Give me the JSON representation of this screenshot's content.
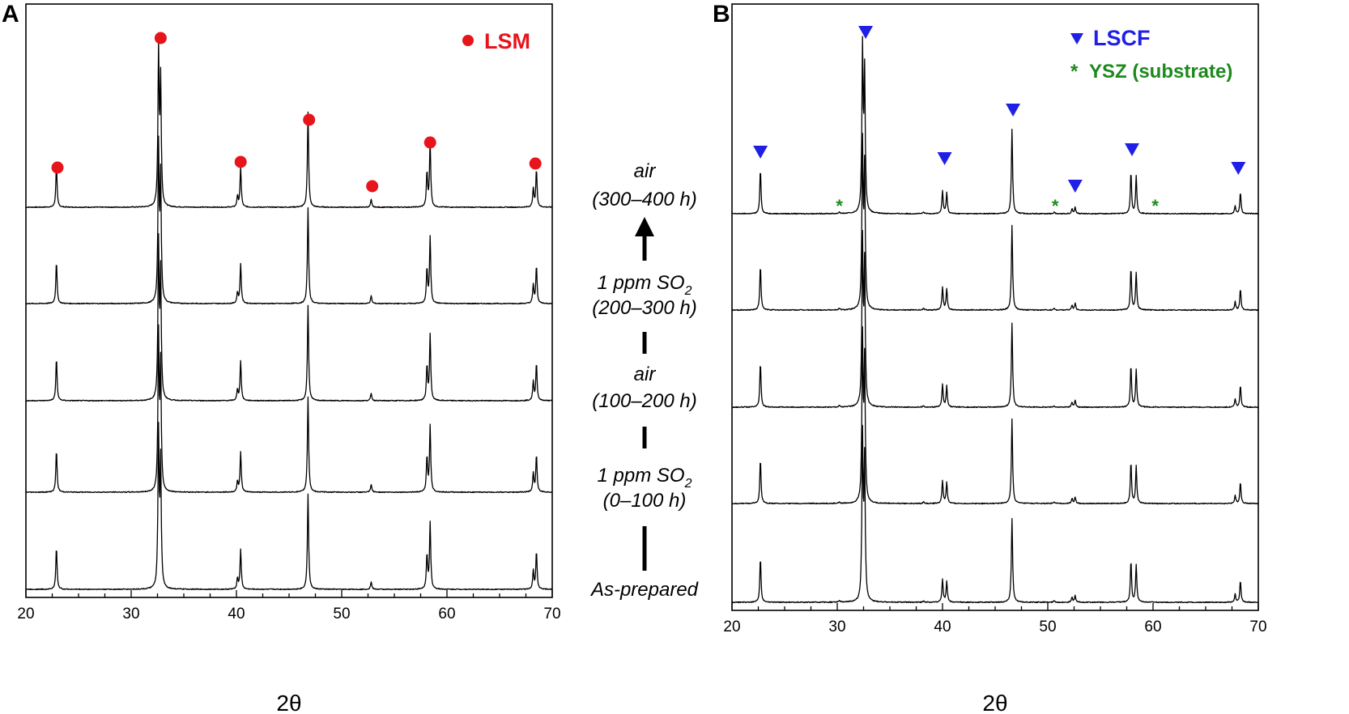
{
  "chart_data": [
    {
      "type": "line",
      "panel": "A",
      "xlabel": "2θ",
      "ylabel": "",
      "xlim": [
        20,
        70
      ],
      "xticks": [
        20,
        30,
        40,
        50,
        60,
        70
      ],
      "legend": {
        "marker": "●",
        "label": "LSM",
        "color": "#e8141b",
        "position": "top-right"
      },
      "peak_markers": [
        23.0,
        32.8,
        40.4,
        46.9,
        52.9,
        58.4,
        68.4
      ],
      "peaks": [
        {
          "x": 22.9,
          "h": 0.27
        },
        {
          "x": 32.6,
          "h": 1.0
        },
        {
          "x": 32.8,
          "h": 0.8
        },
        {
          "x": 40.1,
          "h": 0.07
        },
        {
          "x": 40.4,
          "h": 0.26
        },
        {
          "x": 46.8,
          "h": 0.62
        },
        {
          "x": 52.8,
          "h": 0.05
        },
        {
          "x": 58.1,
          "h": 0.22
        },
        {
          "x": 58.4,
          "h": 0.43
        },
        {
          "x": 68.2,
          "h": 0.12
        },
        {
          "x": 68.5,
          "h": 0.24
        }
      ],
      "series": [
        {
          "name": "air (300–400 h)"
        },
        {
          "name": "1 ppm SO2 (200–300 h)"
        },
        {
          "name": "air (100–200 h)"
        },
        {
          "name": "1 ppm SO2 (0–100 h)"
        },
        {
          "name": "As-prepared"
        }
      ]
    },
    {
      "type": "line",
      "panel": "B",
      "xlabel": "2θ",
      "ylabel": "",
      "xlim": [
        20,
        70
      ],
      "xticks": [
        20,
        30,
        40,
        50,
        60,
        70
      ],
      "legend": [
        {
          "marker": "▼",
          "label": "LSCF",
          "color": "#1f1fe6",
          "position": "top-right"
        },
        {
          "marker": "*",
          "label": "YSZ (substrate)",
          "color": "#1c8a1c",
          "position": "top-right"
        }
      ],
      "peak_markers": [
        22.7,
        32.7,
        40.2,
        46.7,
        52.6,
        58.0,
        68.1
      ],
      "substrate_markers": [
        30.2,
        50.7,
        60.2
      ],
      "peaks": [
        {
          "x": 22.7,
          "h": 0.27
        },
        {
          "x": 32.4,
          "h": 1.0
        },
        {
          "x": 32.6,
          "h": 0.85
        },
        {
          "x": 30.2,
          "h": 0.01
        },
        {
          "x": 38.2,
          "h": 0.01
        },
        {
          "x": 40.0,
          "h": 0.14
        },
        {
          "x": 40.4,
          "h": 0.13
        },
        {
          "x": 46.6,
          "h": 0.52
        },
        {
          "x": 50.6,
          "h": 0.01
        },
        {
          "x": 52.3,
          "h": 0.03
        },
        {
          "x": 52.6,
          "h": 0.04
        },
        {
          "x": 57.9,
          "h": 0.25
        },
        {
          "x": 58.4,
          "h": 0.23
        },
        {
          "x": 67.8,
          "h": 0.05
        },
        {
          "x": 68.3,
          "h": 0.13
        }
      ],
      "series": [
        {
          "name": "air (300–400 h)"
        },
        {
          "name": "1 ppm SO2 (200–300 h)"
        },
        {
          "name": "air (100–200 h)"
        },
        {
          "name": "1 ppm SO2 (0–100 h)"
        },
        {
          "name": "As-prepared"
        }
      ]
    }
  ],
  "panels": {
    "a_label": "A",
    "b_label": "B"
  },
  "legend_a": {
    "label": "LSM"
  },
  "legend_b": {
    "lscf_label": "LSCF",
    "ysz_marker": "*",
    "ysz_label": "YSZ (substrate)"
  },
  "conditions": {
    "c1_line1": "air",
    "c1_line2": "(300–400 h)",
    "c2_line1_prefix": "1 ppm SO",
    "c2_line1_sub": "2",
    "c2_line2": "(200–300 h)",
    "c3_line1": "air",
    "c3_line2": "(100–200 h)",
    "c4_line1_prefix": "1 ppm SO",
    "c4_line1_sub": "2",
    "c4_line2": "(0–100 h)",
    "c5_line1": "As-prepared"
  },
  "colors": {
    "lsm": "#e8141b",
    "lscf": "#1f1fe6",
    "ysz": "#1c8a1c",
    "trace": "#000000"
  }
}
